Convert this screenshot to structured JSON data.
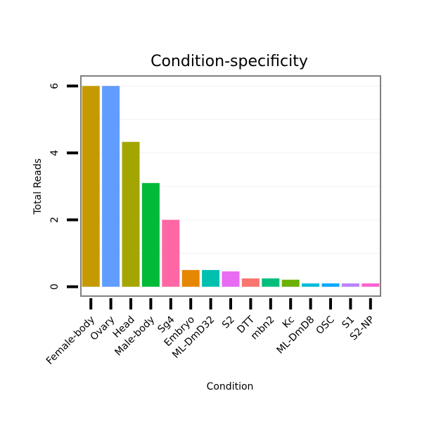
{
  "chart_data": {
    "type": "bar",
    "title": "Condition-specificity",
    "xlabel": "Condition",
    "ylabel": "Total Reads",
    "categories": [
      "Female-body",
      "Ovary",
      "Head",
      "Male-body",
      "Sg4",
      "Embryo",
      "ML-DmD32",
      "S2",
      "DTT",
      "mbn2",
      "Kc",
      "ML-DmD8",
      "OSC",
      "S1",
      "S2-NP"
    ],
    "values": [
      6.0,
      6.0,
      4.33,
      3.1,
      2.0,
      0.5,
      0.5,
      0.46,
      0.25,
      0.25,
      0.21,
      0.1,
      0.1,
      0.1,
      0.1
    ],
    "colors": [
      "#C49A00",
      "#619CFF",
      "#A3A500",
      "#00BA38",
      "#FF67A4",
      "#E58700",
      "#00C0AF",
      "#E76BF3",
      "#F8766D",
      "#00BF7D",
      "#6BB100",
      "#00BCD8",
      "#00A9FF",
      "#B983FF",
      "#FD61D1"
    ],
    "yticks": [
      0,
      2,
      4,
      6
    ],
    "ylim": [
      -0.28,
      6.3
    ],
    "grid": true,
    "legend": "none"
  }
}
